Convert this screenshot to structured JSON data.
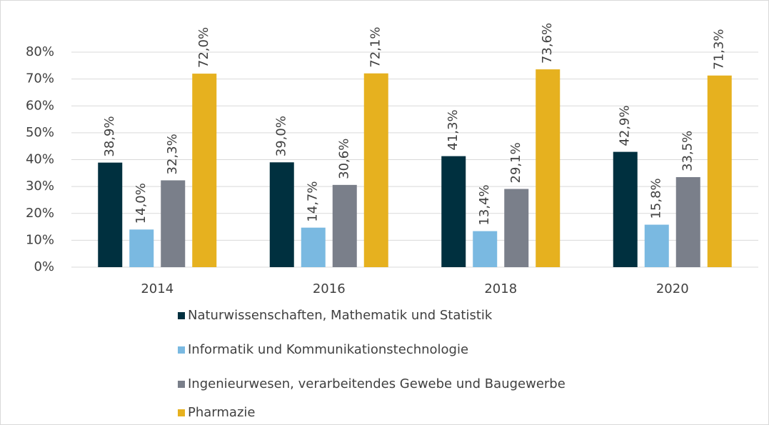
{
  "chart_data": {
    "type": "bar",
    "categories": [
      "2014",
      "2016",
      "2018",
      "2020"
    ],
    "series": [
      {
        "name": "Naturwissenschaften, Mathematik und Statistik",
        "color": "#00303f",
        "values": [
          38.9,
          39.0,
          41.3,
          42.9
        ],
        "value_labels": [
          "38,9%",
          "39,0%",
          "41,3%",
          "42,9%"
        ]
      },
      {
        "name": "Informatik und Kommunikationstechnologie",
        "color": "#7ab9e1",
        "values": [
          14.0,
          14.7,
          13.4,
          15.8
        ],
        "value_labels": [
          "14,0%",
          "14,7%",
          "13,4%",
          "15,8%"
        ]
      },
      {
        "name": "Ingenieurwesen, verarbeitendes Gewebe und Baugewerbe",
        "color": "#7a7f8a",
        "values": [
          32.3,
          30.6,
          29.1,
          33.5
        ],
        "value_labels": [
          "32,3%",
          "30,6%",
          "29,1%",
          "33,5%"
        ]
      },
      {
        "name": "Pharmazie",
        "color": "#e6b11f",
        "values": [
          72.0,
          72.1,
          73.6,
          71.3
        ],
        "value_labels": [
          "72,0%",
          "72,1%",
          "73,6%",
          "71,3%"
        ]
      }
    ],
    "ylim": [
      0,
      80
    ],
    "yticks": [
      {
        "value": 0,
        "label": "0%"
      },
      {
        "value": 10,
        "label": "10%"
      },
      {
        "value": 20,
        "label": "20%"
      },
      {
        "value": 30,
        "label": "30%"
      },
      {
        "value": 40,
        "label": "40%"
      },
      {
        "value": 50,
        "label": "50%"
      },
      {
        "value": 60,
        "label": "60%"
      },
      {
        "value": 70,
        "label": "70%"
      },
      {
        "value": 80,
        "label": "80%"
      }
    ],
    "grid": true
  }
}
